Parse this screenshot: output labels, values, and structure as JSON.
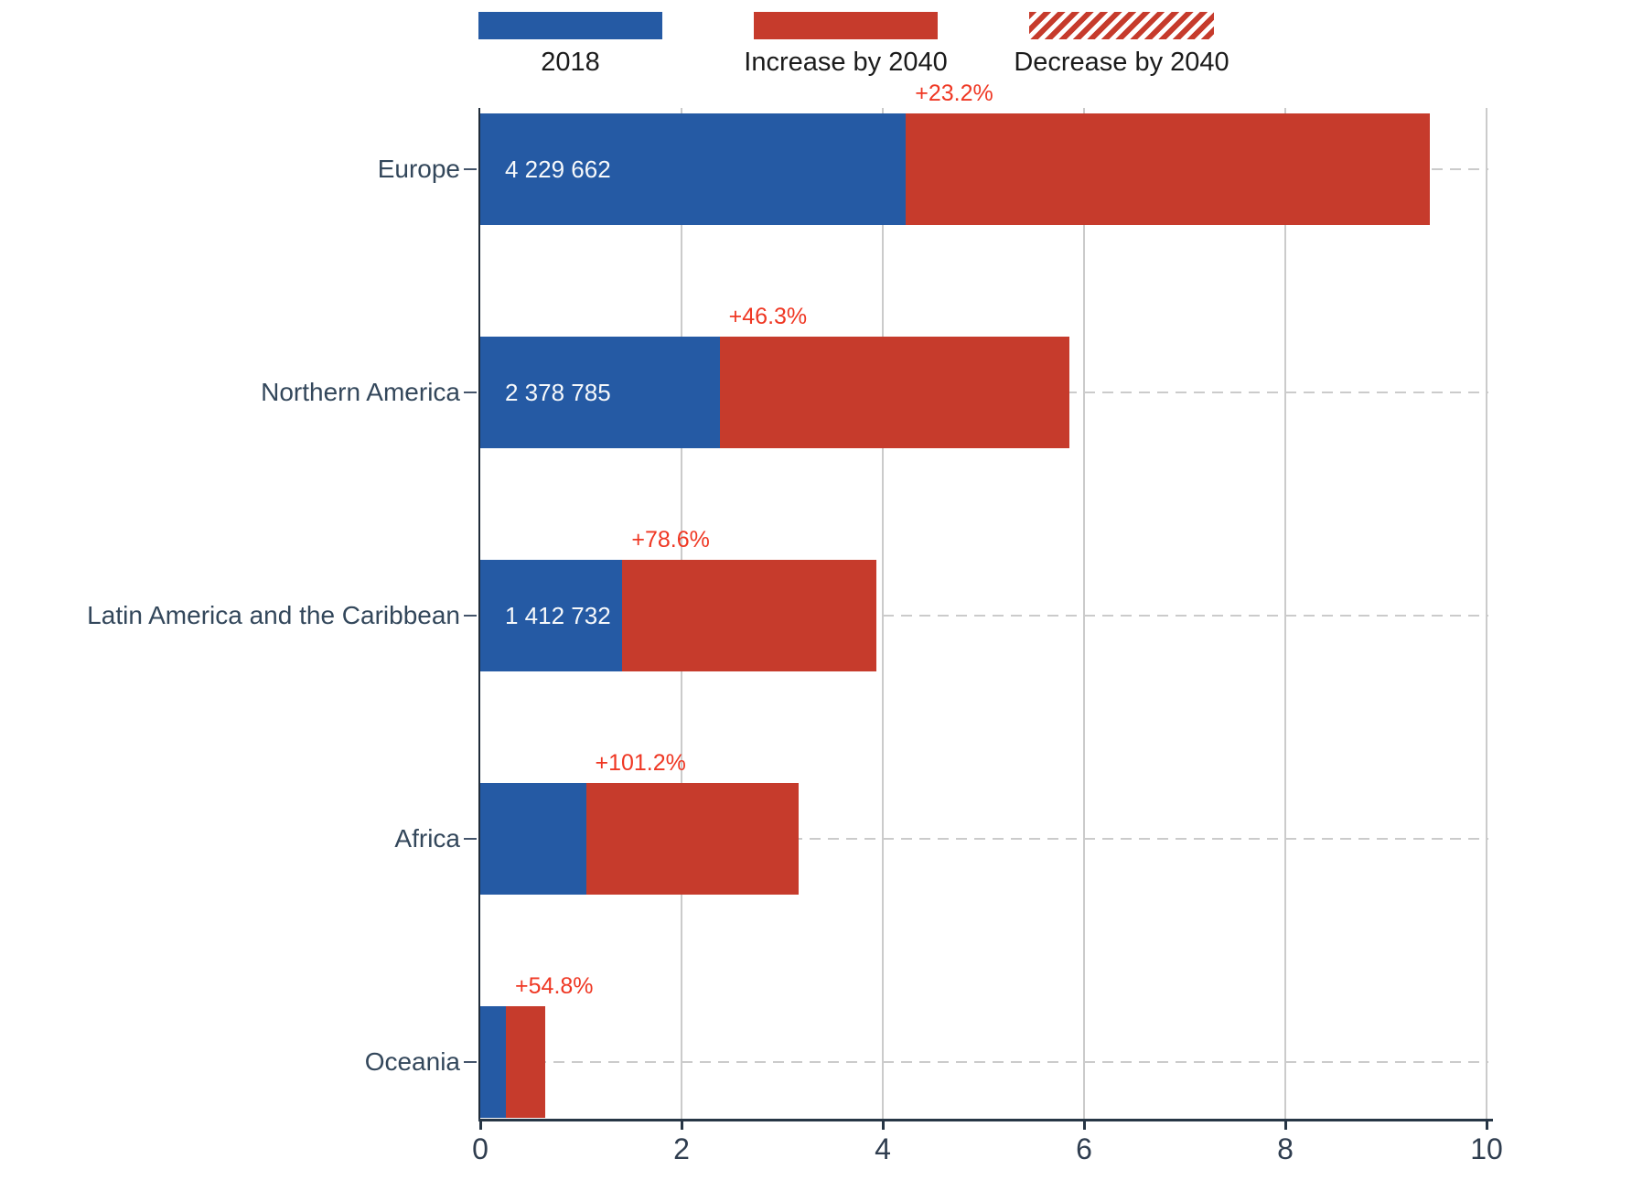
{
  "legend": {
    "items": [
      {
        "label": "2018",
        "swatch": "solid-blue"
      },
      {
        "label": "Increase by 2040",
        "swatch": "solid-red"
      },
      {
        "label": "Decrease by 2040",
        "swatch": "hatched-red"
      }
    ]
  },
  "colors": {
    "bar_2018_blue": "#255AA4",
    "bar_increase_red": "#C63B2C",
    "pct_label_red": "#EF3723",
    "category_label": "#33475B",
    "tick_label": "#2F3D4F",
    "legend_label": "#1B1B1B",
    "axis_line": "#273645",
    "gridline": "#CBCBCB"
  },
  "chart_data": {
    "type": "bar",
    "orientation": "horizontal",
    "title": "",
    "legend_position": "top",
    "x_axis": {
      "ticks": [
        "0",
        "2",
        "4",
        "6",
        "8",
        "10"
      ],
      "lim": [
        0,
        10
      ],
      "gridlines": "solid vertical at 2,4,6,8,10; dashed horizontal per category"
    },
    "categories": [
      "Europe",
      "Northern America",
      "Latin America and the Caribbean",
      "Africa",
      "Oceania"
    ],
    "series": [
      {
        "name": "2018",
        "values": [
          4.2297,
          2.3788,
          1.4127,
          1.05,
          0.255
        ]
      },
      {
        "name": "Increase by 2040",
        "values": [
          5.211,
          3.48,
          2.523,
          2.113,
          0.395
        ]
      }
    ],
    "bar_totals": [
      9.44,
      5.86,
      3.94,
      3.16,
      0.65
    ],
    "bar_value_labels": [
      "4 229 662",
      "2 378 785",
      "1 412 732",
      "",
      ""
    ],
    "increase_pct_labels": [
      "+23.2%",
      "+46.3%",
      "+78.6%",
      "+101.2%",
      "+54.8%"
    ]
  }
}
